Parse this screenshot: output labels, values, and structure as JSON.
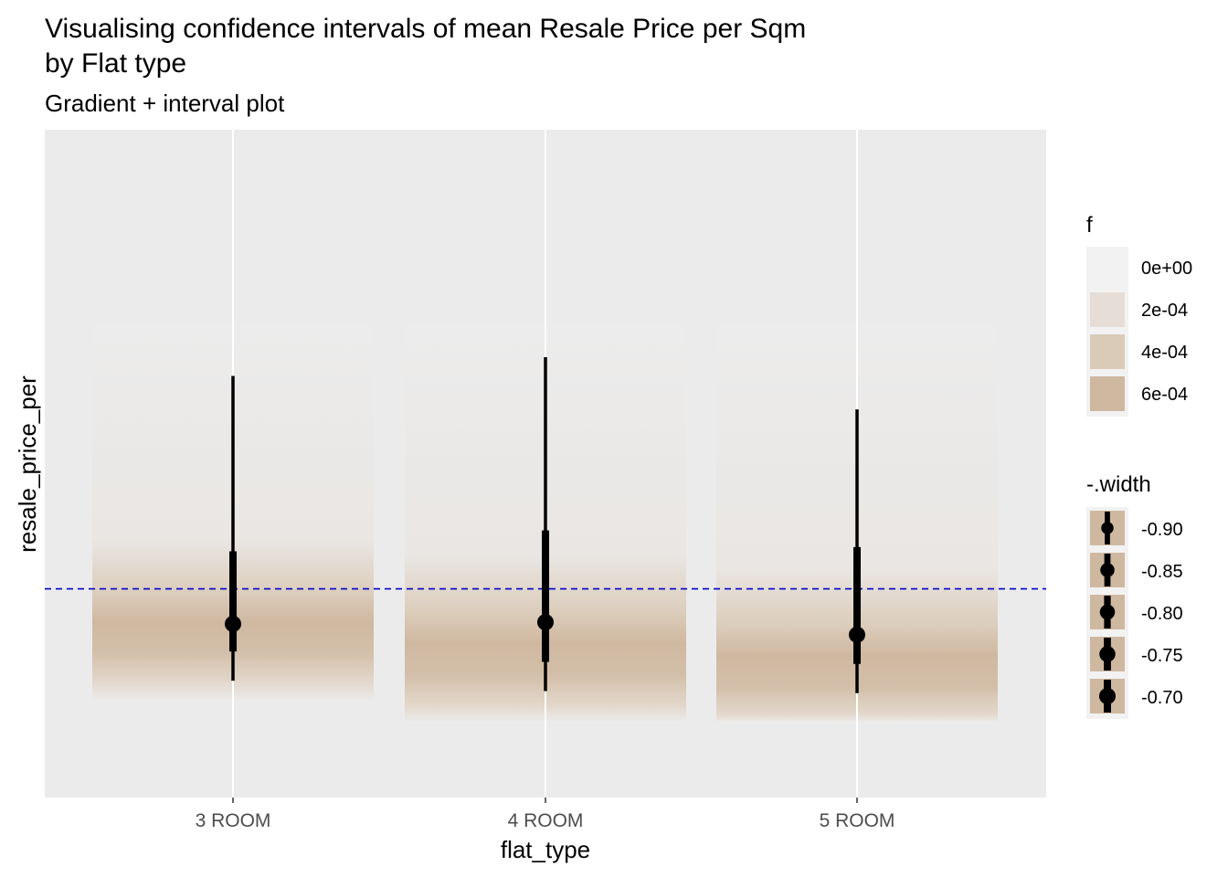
{
  "chart_data": {
    "type": "gradient-interval",
    "title_lines": [
      "Visualising confidence intervals of mean Resale Price per Sqm",
      "by Flat type"
    ],
    "subtitle": "Gradient + interval plot",
    "xlabel": "flat_type",
    "ylabel": "resale_price_per",
    "categories": [
      "3 ROOM",
      "4 ROOM",
      "5 ROOM"
    ],
    "y_tick_labels": [],
    "reference_line": {
      "style": "dashed",
      "color": "#0000cc",
      "y": 0.5
    },
    "series": [
      {
        "category": "3 ROOM",
        "mean": 0.416,
        "interval_thick": [
          0.35,
          0.59
        ],
        "interval_thin": [
          0.28,
          1.01
        ],
        "gradient_range": [
          0.23,
          1.13
        ],
        "gradient_peak": 0.42
      },
      {
        "category": "4 ROOM",
        "mean": 0.42,
        "interval_thick": [
          0.325,
          0.64
        ],
        "interval_thin": [
          0.255,
          1.055
        ],
        "gradient_range": [
          0.18,
          1.13
        ],
        "gradient_peak": 0.37
      },
      {
        "category": "5 ROOM",
        "mean": 0.39,
        "interval_thick": [
          0.32,
          0.6
        ],
        "interval_thin": [
          0.25,
          0.93
        ],
        "gradient_range": [
          0.18,
          1.13
        ],
        "gradient_peak": 0.34
      }
    ],
    "ylim": [
      0,
      1.6
    ],
    "grid": true,
    "legend_position": "right",
    "legends": [
      {
        "title": "f",
        "entries": [
          {
            "label": "0e+00",
            "color": "#f2f2f2"
          },
          {
            "label": "2e-04",
            "color": "#e6ded6"
          },
          {
            "label": "4e-04",
            "color": "#dacbb9"
          },
          {
            "label": "6e-04",
            "color": "#cfb8a0"
          }
        ]
      },
      {
        "title": "-.width",
        "entries": [
          {
            "label": "-0.90",
            "scale": 0.55
          },
          {
            "label": "-0.85",
            "scale": 0.75
          },
          {
            "label": "-0.80",
            "scale": 0.85
          },
          {
            "label": "-0.75",
            "scale": 0.95
          },
          {
            "label": "-0.70",
            "scale": 1.0
          }
        ]
      }
    ],
    "colors": {
      "panel": "#ebebeb",
      "grid": "#ffffff",
      "gradient_peak": "#cfb8a0",
      "gradient_low": "#ececec",
      "interval": "#000000"
    }
  }
}
